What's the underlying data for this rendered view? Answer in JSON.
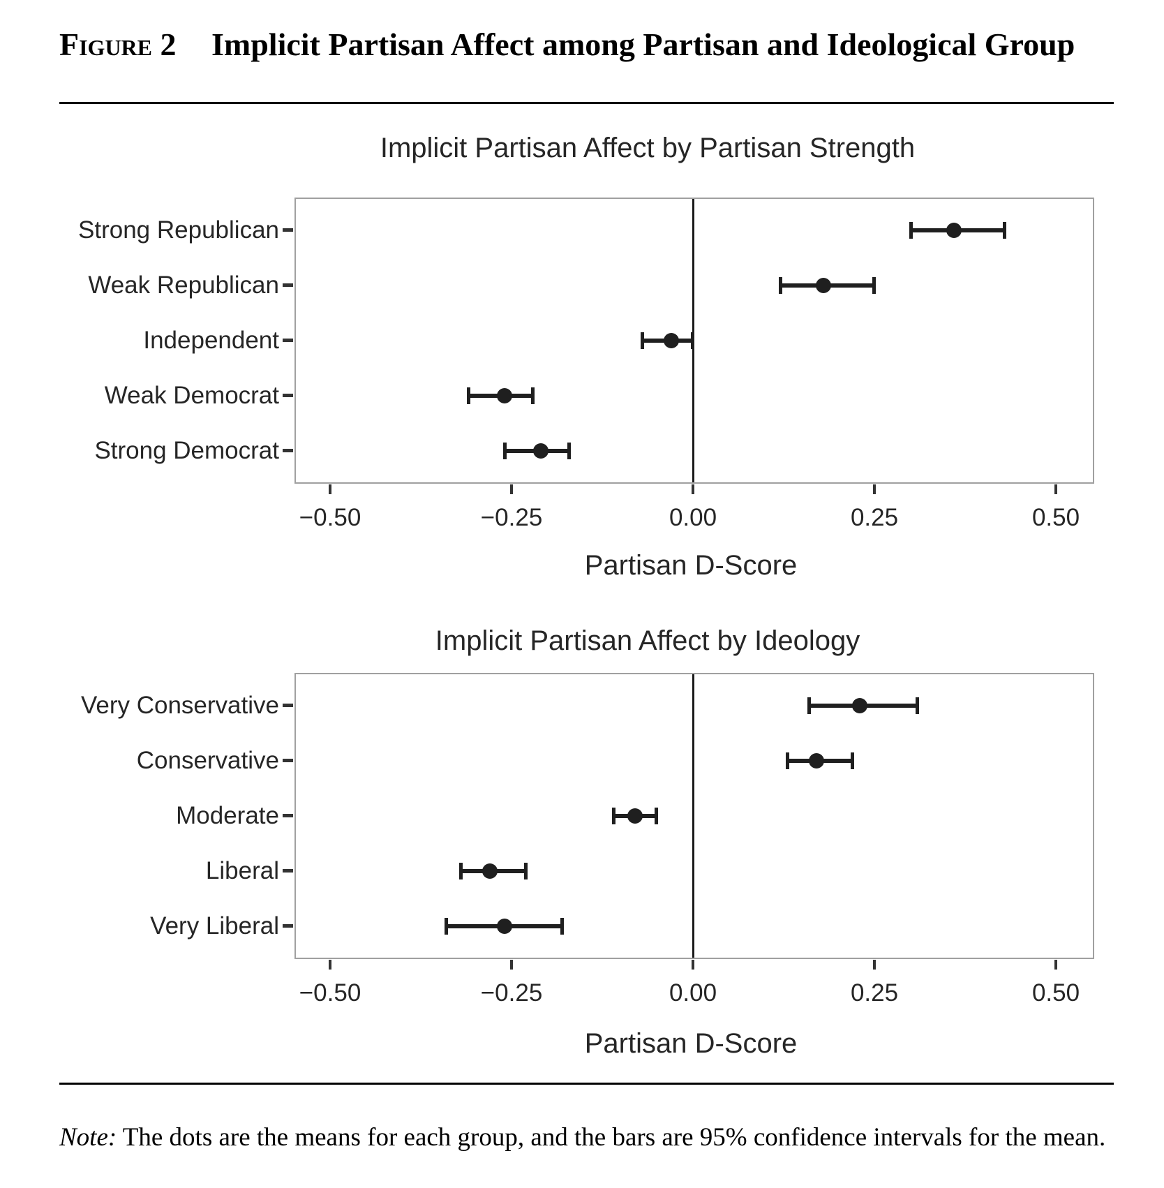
{
  "header": {
    "figure_label": "Figure 2",
    "title": "Implicit Partisan Affect among Partisan and Ideological Group"
  },
  "note": {
    "label": "Note:",
    "text": " The dots are the means for each group, and the bars are 95% confidence intervals for the mean."
  },
  "colors": {
    "point": "#1f1f1f",
    "chart_text": "#262626",
    "panel_border": "#a0a0a0",
    "rule": "#000000"
  },
  "chart_data": [
    {
      "type": "scatter",
      "subtype": "dot-and-whisker, horizontal, 95% CI error bars",
      "title": "Implicit Partisan Affect by Partisan Strength",
      "xlabel": "Partisan D-Score",
      "ylabel": "",
      "xlim": [
        -0.55,
        0.55
      ],
      "xticks": [
        -0.5,
        -0.25,
        0,
        0.25,
        0.5
      ],
      "xtick_labels": [
        "−0.50",
        "−0.25",
        "0.00",
        "0.25",
        "0.50"
      ],
      "zero_reference_line": true,
      "grid": false,
      "legend": "none",
      "categories": [
        "Strong Republican",
        "Weak Republican",
        "Independent",
        "Weak Democrat",
        "Strong Democrat"
      ],
      "means": [
        0.36,
        0.18,
        -0.03,
        -0.26,
        -0.21
      ],
      "ci_low": [
        0.3,
        0.12,
        -0.07,
        -0.31,
        -0.26
      ],
      "ci_high": [
        0.43,
        0.25,
        0.0,
        -0.22,
        -0.17
      ],
      "ci_level": "95%"
    },
    {
      "type": "scatter",
      "subtype": "dot-and-whisker, horizontal, 95% CI error bars",
      "title": "Implicit Partisan Affect by Ideology",
      "xlabel": "Partisan D-Score",
      "ylabel": "",
      "xlim": [
        -0.55,
        0.55
      ],
      "xticks": [
        -0.5,
        -0.25,
        0,
        0.25,
        0.5
      ],
      "xtick_labels": [
        "−0.50",
        "−0.25",
        "0.00",
        "0.25",
        "0.50"
      ],
      "zero_reference_line": true,
      "grid": false,
      "legend": "none",
      "categories": [
        "Very Conservative",
        "Conservative",
        "Moderate",
        "Liberal",
        "Very Liberal"
      ],
      "means": [
        0.23,
        0.17,
        -0.08,
        -0.28,
        -0.26
      ],
      "ci_low": [
        0.16,
        0.13,
        -0.11,
        -0.32,
        -0.34
      ],
      "ci_high": [
        0.31,
        0.22,
        -0.05,
        -0.23,
        -0.18
      ],
      "ci_level": "95%"
    }
  ]
}
